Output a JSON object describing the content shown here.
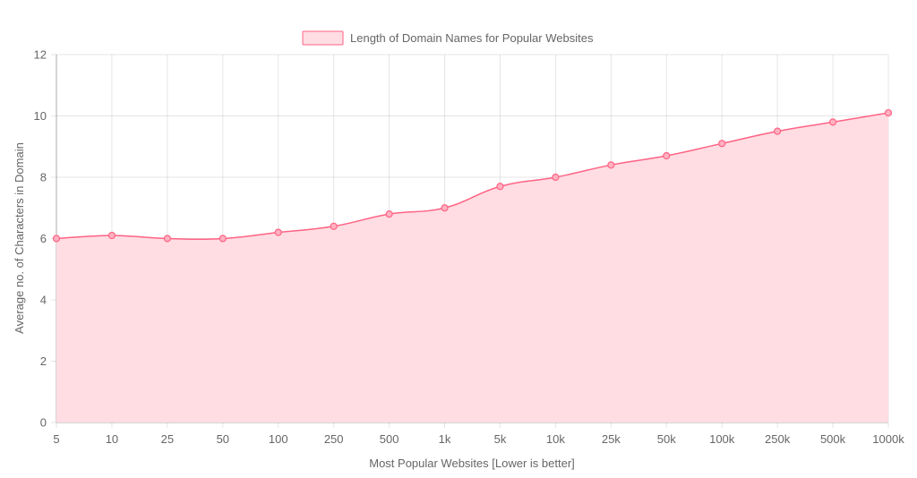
{
  "chart_data": {
    "type": "area",
    "title": "",
    "xlabel": "Most Popular Websites [Lower is better]",
    "ylabel": "Average no. of Characters in Domain",
    "categories": [
      "5",
      "10",
      "25",
      "50",
      "100",
      "250",
      "500",
      "1k",
      "5k",
      "10k",
      "25k",
      "50k",
      "100k",
      "250k",
      "500k",
      "1000k"
    ],
    "series": [
      {
        "name": "Length of Domain Names for Popular Websites",
        "values": [
          6.0,
          6.1,
          6.0,
          6.0,
          6.2,
          6.4,
          6.8,
          7.0,
          7.7,
          8.0,
          8.4,
          8.7,
          9.1,
          9.5,
          9.8,
          10.1
        ]
      }
    ],
    "ylim": [
      0,
      12
    ],
    "yticks": [
      "0",
      "2",
      "4",
      "6",
      "8",
      "10",
      "12"
    ],
    "grid": true,
    "legend_position": "top",
    "colors": {
      "line": "#ff6384",
      "fill": "#ffdde3",
      "point_fill": "#ffb1c1",
      "legend_fill": "#ffdde3"
    }
  }
}
